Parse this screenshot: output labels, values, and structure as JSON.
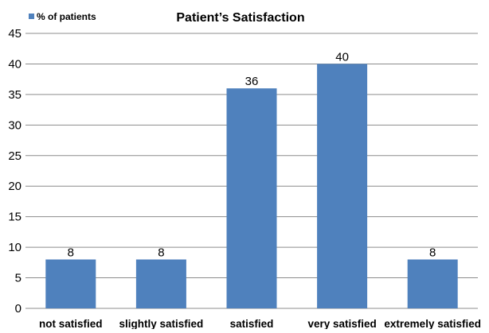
{
  "chart_data": {
    "type": "bar",
    "title": "Patient’s Satisfaction",
    "legend_position": "top-left",
    "series": [
      {
        "name": "% of patients",
        "values": [
          8,
          8,
          36,
          40,
          8
        ],
        "color": "#4f81bd"
      }
    ],
    "categories": [
      "not satisfied",
      "slightly satisfied",
      "satisfied",
      "very satisfied",
      "extremely satisfied"
    ],
    "data_labels": [
      "8",
      "8",
      "36",
      "40",
      "8"
    ],
    "xlabel": "",
    "ylabel": "",
    "ylim": [
      0,
      45
    ],
    "y_ticks": [
      "0",
      "5",
      "10",
      "15",
      "20",
      "25",
      "30",
      "35",
      "40",
      "45"
    ],
    "grid": true
  }
}
